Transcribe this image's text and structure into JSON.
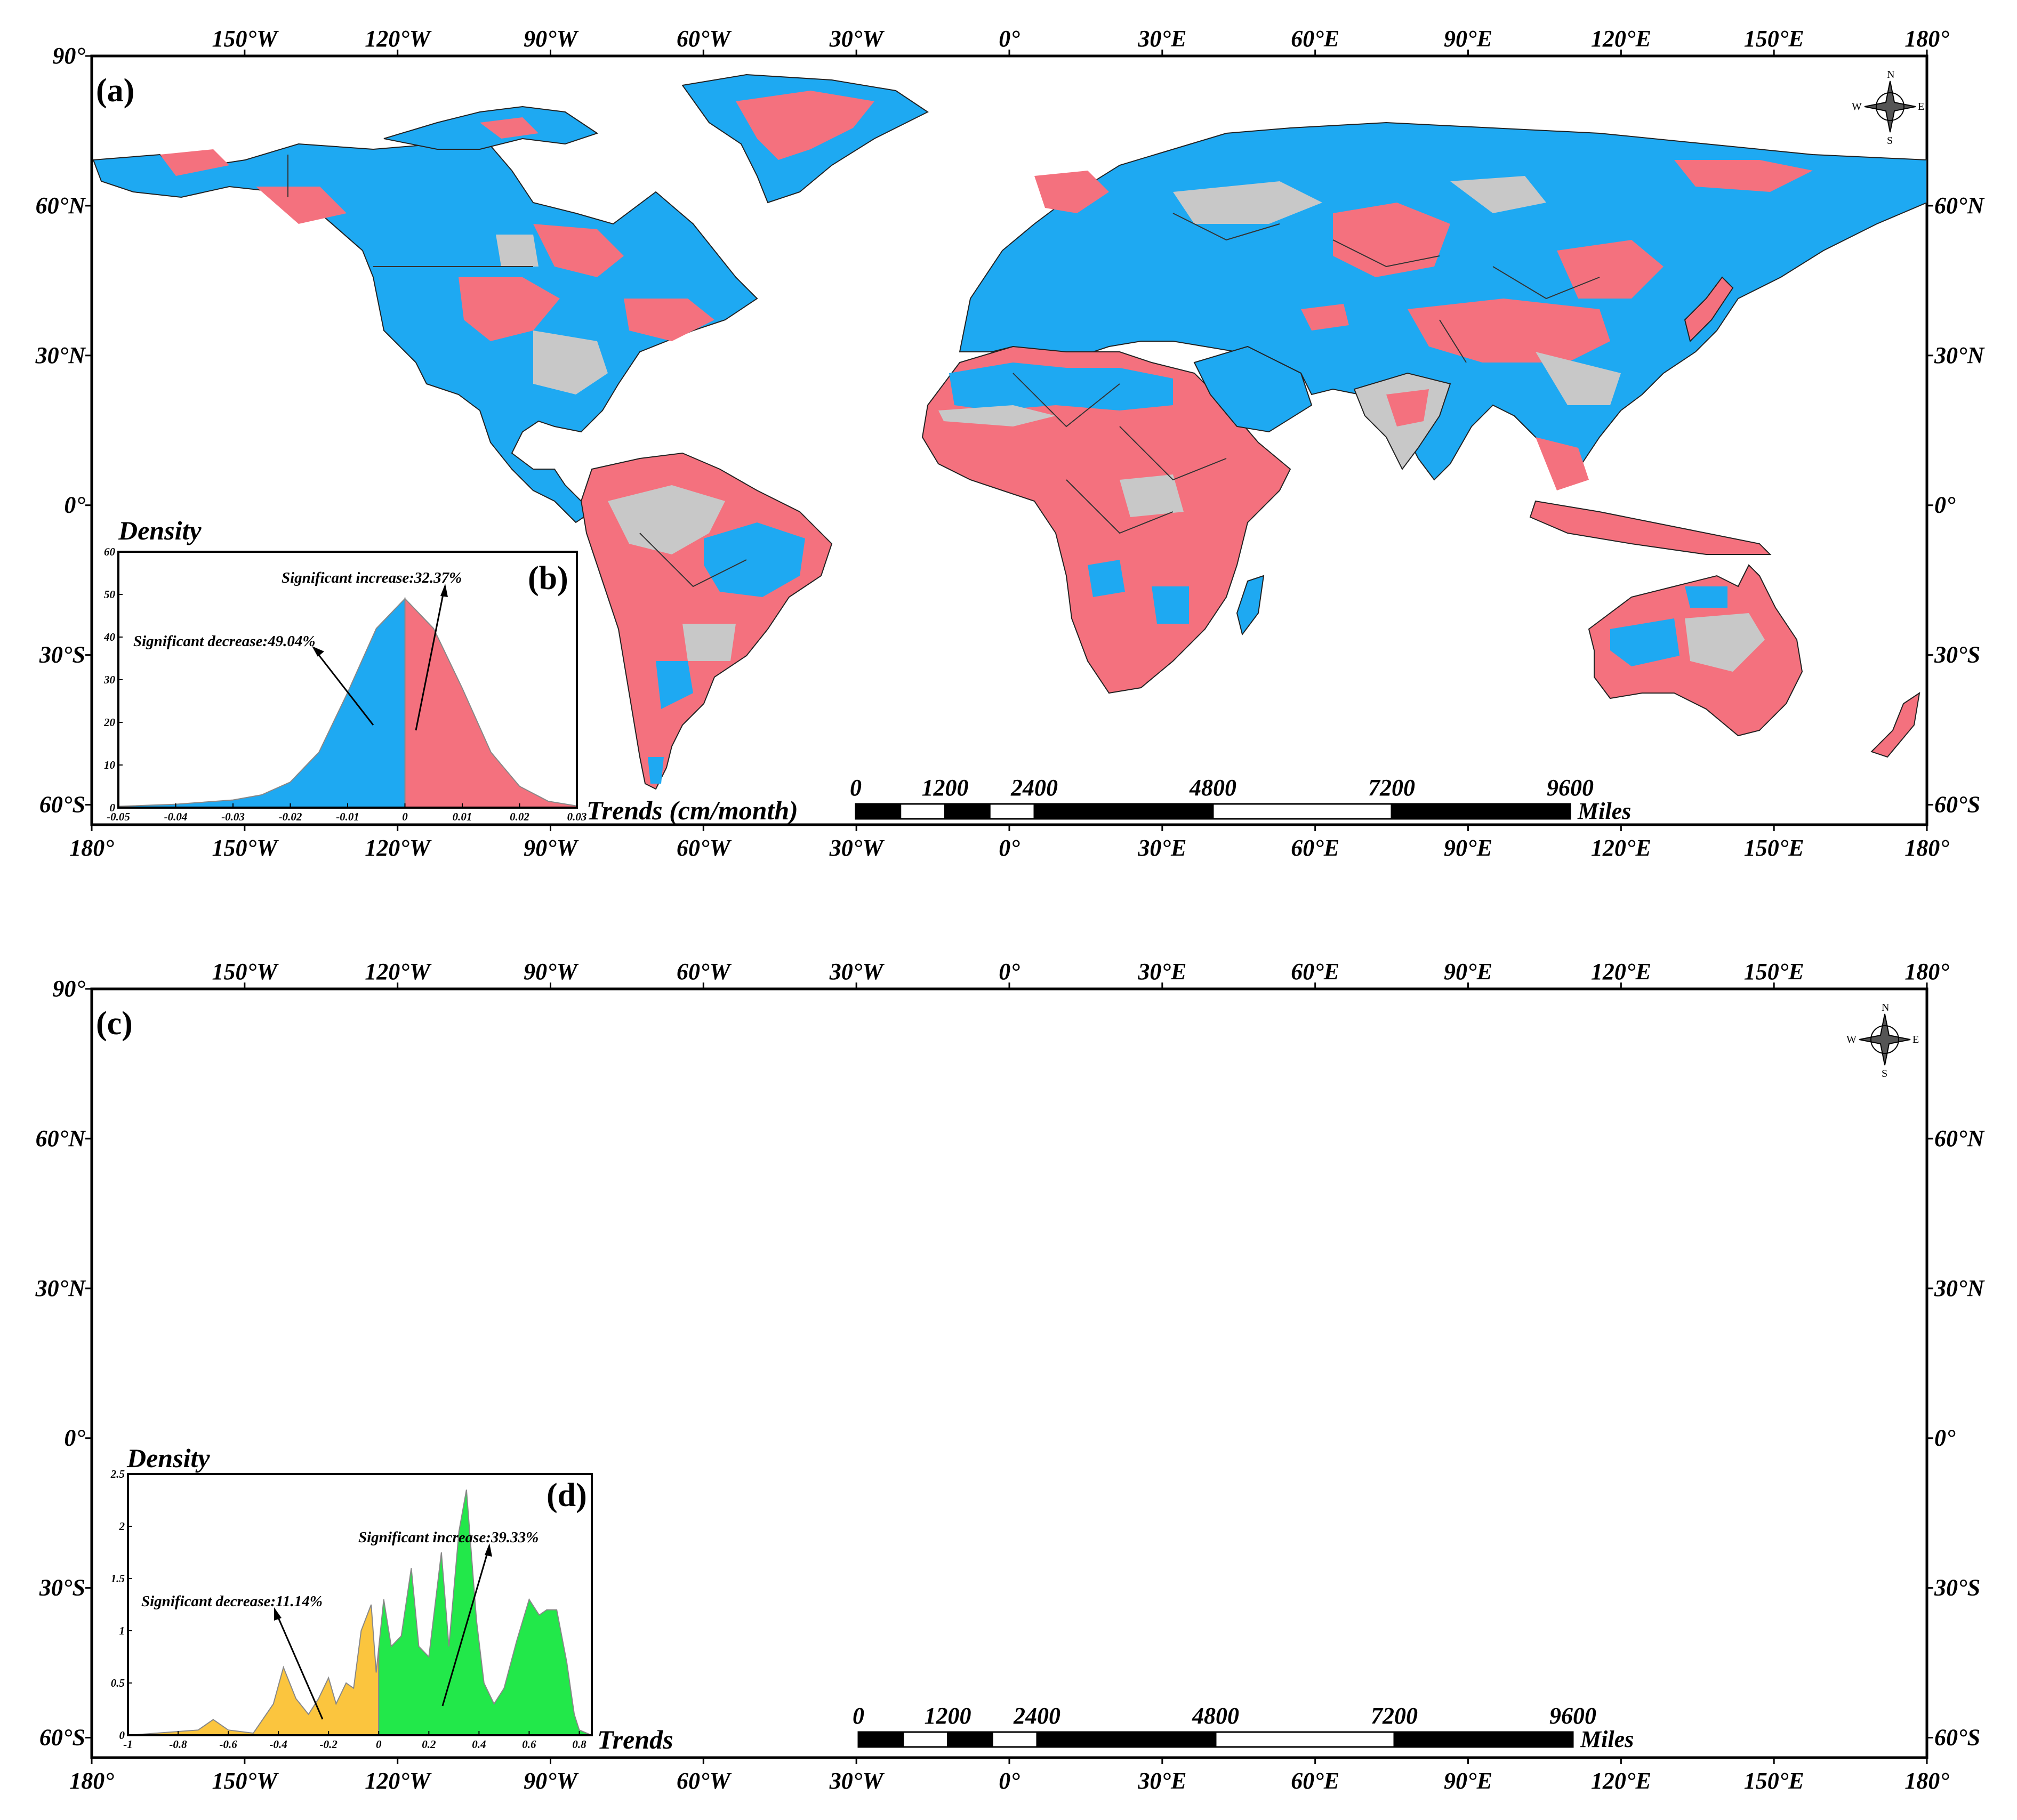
{
  "lon_labels": [
    "180°",
    "150°W",
    "120°W",
    "90°W",
    "60°W",
    "30°W",
    "0°",
    "30°E",
    "60°E",
    "90°E",
    "120°E",
    "150°E",
    "180°"
  ],
  "lon_labels_top": [
    "150°W",
    "120°W",
    "90°W",
    "60°W",
    "30°W",
    "0°",
    "30°E",
    "60°E",
    "90°E",
    "120°E",
    "150°E",
    "180°"
  ],
  "lat_labels": [
    "90°",
    "60°N",
    "30°N",
    "0°",
    "30°S",
    "60°S"
  ],
  "lat_labels_right": [
    "60°N",
    "30°N",
    "0°",
    "30°S",
    "60°S"
  ],
  "compass": {
    "n": "N",
    "s": "S",
    "e": "E",
    "w": "W"
  },
  "colors": {
    "a_increase": "#f4717e",
    "a_decrease": "#1ea9f2",
    "a_insig": "#c8c8c8",
    "c_increase": "#22e84a",
    "c_decrease": "#fbc53e",
    "c_insig": "#c8c8c8"
  },
  "panel_a": {
    "label": "(a)",
    "inset": {
      "label": "(b)",
      "ylabel": "Density",
      "xlabel": "Trends (cm/month)",
      "annot_decrease": "Significant decrease:49.04%",
      "annot_increase": "Significant increase:32.37%",
      "chart_data": {
        "type": "area",
        "x_ticks": [
          "-0.05",
          "-0.04",
          "-0.03",
          "-0.02",
          "-0.01",
          "0",
          "0.01",
          "0.02",
          "0.03"
        ],
        "y_ticks": [
          "0",
          "10",
          "20",
          "30",
          "40",
          "50",
          "60"
        ],
        "xlim": [
          -0.05,
          0.03
        ],
        "ylim": [
          0,
          60
        ],
        "x": [
          -0.05,
          -0.04,
          -0.03,
          -0.025,
          -0.02,
          -0.015,
          -0.01,
          -0.005,
          0,
          0.005,
          0.01,
          0.015,
          0.02,
          0.025,
          0.03
        ],
        "y": [
          0.3,
          0.8,
          1.8,
          3,
          6,
          13,
          27,
          42,
          49,
          42,
          28,
          13,
          5,
          1.5,
          0.4
        ]
      }
    },
    "scale": {
      "ticks": [
        "0",
        "1200",
        "2400",
        "4800",
        "7200",
        "9600"
      ],
      "unit": "Miles"
    }
  },
  "panel_c": {
    "label": "(c)",
    "inset": {
      "label": "(d)",
      "ylabel": "Density",
      "xlabel": "Trends",
      "annot_decrease": "Significant decrease:11.14%",
      "annot_increase": "Significant increase:39.33%",
      "chart_data": {
        "type": "area",
        "x_ticks": [
          "-1",
          "-0.8",
          "-0.6",
          "-0.4",
          "-0.2",
          "0",
          "0.2",
          "0.4",
          "0.6",
          "0.8"
        ],
        "y_ticks": [
          "0",
          "0.5",
          "1",
          "1.5",
          "2",
          "2.5"
        ],
        "xlim": [
          -1,
          0.85
        ],
        "ylim": [
          0,
          2.5
        ],
        "x": [
          -1,
          -0.72,
          -0.66,
          -0.6,
          -0.5,
          -0.42,
          -0.38,
          -0.33,
          -0.28,
          -0.24,
          -0.2,
          -0.17,
          -0.13,
          -0.1,
          -0.07,
          -0.03,
          -0.01,
          0.02,
          0.05,
          0.09,
          0.13,
          0.16,
          0.2,
          0.25,
          0.28,
          0.32,
          0.35,
          0.39,
          0.42,
          0.46,
          0.5,
          0.55,
          0.6,
          0.64,
          0.67,
          0.71,
          0.75,
          0.78,
          0.8,
          0.85
        ],
        "y": [
          0,
          0.05,
          0.15,
          0.05,
          0.02,
          0.3,
          0.65,
          0.35,
          0.2,
          0.35,
          0.55,
          0.3,
          0.5,
          0.45,
          1.0,
          1.25,
          0.6,
          1.3,
          0.85,
          0.95,
          1.6,
          0.85,
          0.75,
          1.75,
          0.85,
          1.95,
          2.35,
          1.1,
          0.5,
          0.3,
          0.45,
          0.9,
          1.3,
          1.15,
          1.2,
          1.2,
          0.7,
          0.2,
          0.05,
          0
        ]
      }
    },
    "scale": {
      "ticks": [
        "0",
        "1200",
        "2400",
        "4800",
        "7200",
        "9600"
      ],
      "unit": "Miles"
    }
  }
}
